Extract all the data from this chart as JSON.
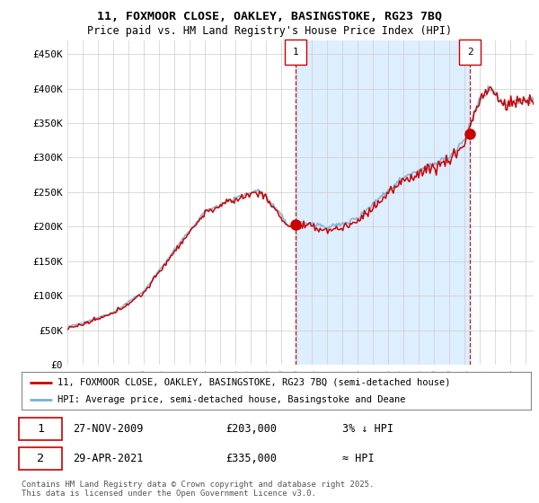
{
  "title_line1": "11, FOXMOOR CLOSE, OAKLEY, BASINGSTOKE, RG23 7BQ",
  "title_line2": "Price paid vs. HM Land Registry's House Price Index (HPI)",
  "ylabel_ticks": [
    "£0",
    "£50K",
    "£100K",
    "£150K",
    "£200K",
    "£250K",
    "£300K",
    "£350K",
    "£400K",
    "£450K"
  ],
  "ytick_values": [
    0,
    50000,
    100000,
    150000,
    200000,
    250000,
    300000,
    350000,
    400000,
    450000
  ],
  "ylim": [
    0,
    470000
  ],
  "xlim_start": 1995.0,
  "xlim_end": 2025.5,
  "xtick_years": [
    1995,
    1996,
    1997,
    1998,
    1999,
    2000,
    2001,
    2002,
    2003,
    2004,
    2005,
    2006,
    2007,
    2008,
    2009,
    2010,
    2011,
    2012,
    2013,
    2014,
    2015,
    2016,
    2017,
    2018,
    2019,
    2020,
    2021,
    2022,
    2023,
    2024,
    2025
  ],
  "sale1_x": 2009.91,
  "sale1_y": 203000,
  "sale1_label": "1",
  "sale2_x": 2021.33,
  "sale2_y": 335000,
  "sale2_label": "2",
  "legend_line1": "11, FOXMOOR CLOSE, OAKLEY, BASINGSTOKE, RG23 7BQ (semi-detached house)",
  "legend_line2": "HPI: Average price, semi-detached house, Basingstoke and Deane",
  "annotation1_date": "27-NOV-2009",
  "annotation1_price": "£203,000",
  "annotation1_hpi": "3% ↓ HPI",
  "annotation2_date": "29-APR-2021",
  "annotation2_price": "£335,000",
  "annotation2_hpi": "≈ HPI",
  "footer": "Contains HM Land Registry data © Crown copyright and database right 2025.\nThis data is licensed under the Open Government Licence v3.0.",
  "color_red": "#cc0000",
  "color_blue": "#7ab0d4",
  "color_fill": "#ddeeff",
  "bg_color": "#ffffff",
  "grid_color": "#cccccc"
}
